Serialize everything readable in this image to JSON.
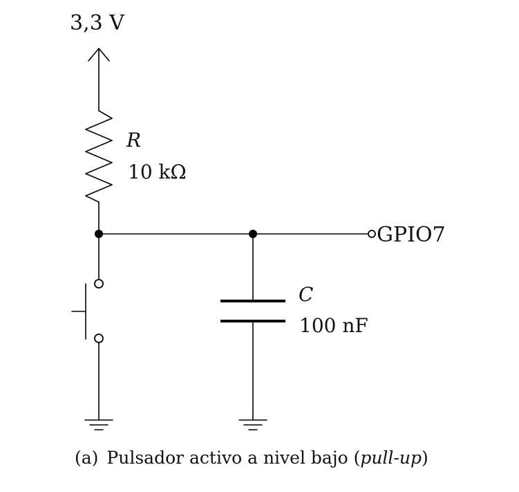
{
  "supply": {
    "label": "3,3 V"
  },
  "resistor": {
    "name": "R",
    "value": "10 kΩ"
  },
  "capacitor": {
    "name": "C",
    "value": "100 nF"
  },
  "output": {
    "label": "GPIO7"
  },
  "caption": {
    "prefix": "(a)",
    "text": "Pulsador activo a nivel bajo (",
    "emphasis": "pull-up",
    "suffix": ")"
  }
}
